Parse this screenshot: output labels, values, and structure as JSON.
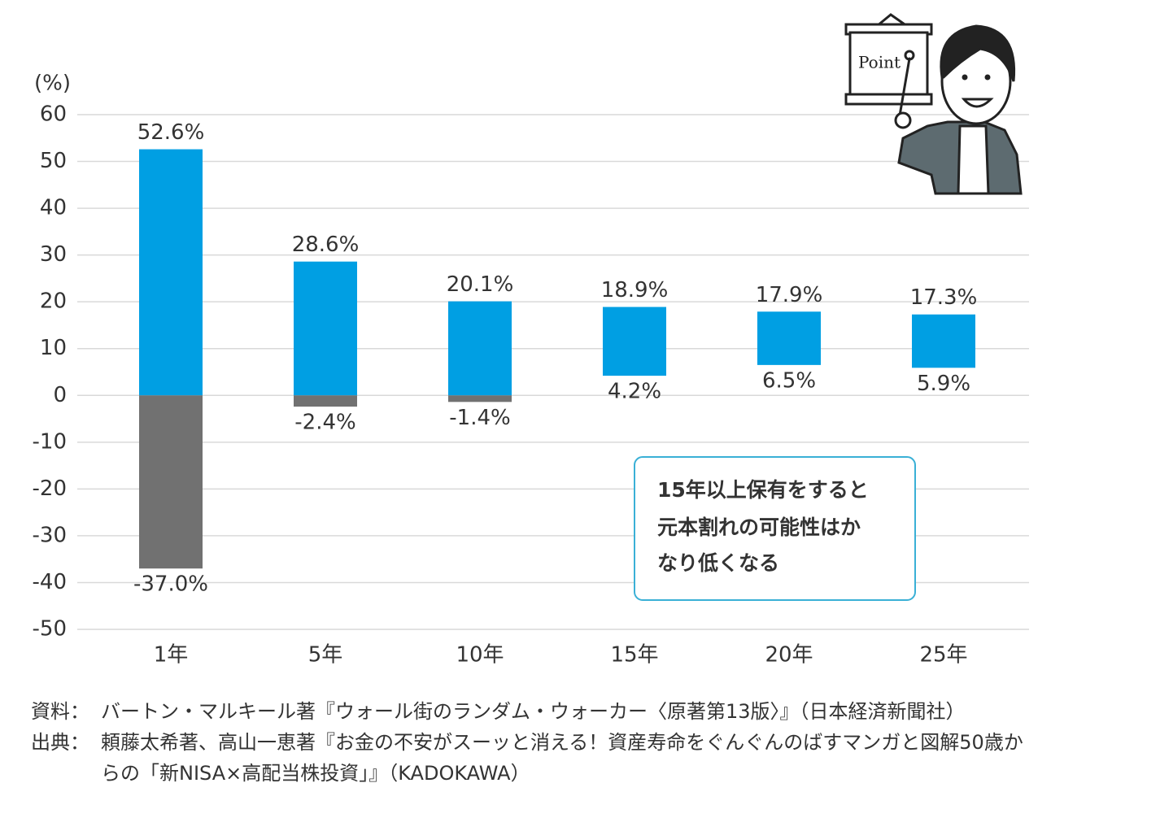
{
  "chart_data": {
    "type": "floating_bar",
    "y_axis_label": "(%)",
    "categories": [
      "1年",
      "5年",
      "10年",
      "15年",
      "20年",
      "25年"
    ],
    "series": [
      {
        "color": "#009fe3",
        "values": [
          52.6,
          28.6,
          20.1,
          18.9,
          17.9,
          17.3
        ],
        "value_labels": [
          "52.6%",
          "28.6%",
          "20.1%",
          "18.9%",
          "17.9%",
          "17.3%"
        ]
      },
      {
        "color": "#717171",
        "values": [
          -37.0,
          -2.4,
          -1.4,
          4.2,
          6.5,
          5.9
        ],
        "value_labels": [
          "-37.0%",
          "-2.4%",
          "-1.4%",
          "4.2%",
          "6.5%",
          "5.9%"
        ]
      }
    ],
    "ylim": [
      -50,
      60
    ],
    "yticks": [
      -50,
      -40,
      -30,
      -20,
      -10,
      0,
      10,
      20,
      30,
      40,
      50,
      60
    ],
    "grid": true,
    "annotation": [
      "15年以上保有をすると",
      "元本割れの可能性はか",
      "なり低くなる"
    ],
    "illustration_text": "Point"
  },
  "sources": [
    {
      "label": "資料：",
      "text": "バートン・マルキール著『ウォール街のランダム・ウォーカー〈原著第13版〉』（日本経済新聞社）"
    },
    {
      "label": "出典：",
      "text": "頼藤太希著、高山一恵著『お金の不安がスーッと消える！資産寿命をぐんぐんのばすマンガと図解50歳からの「新NISA×高配当株投資」』（KADOKAWA）"
    }
  ]
}
